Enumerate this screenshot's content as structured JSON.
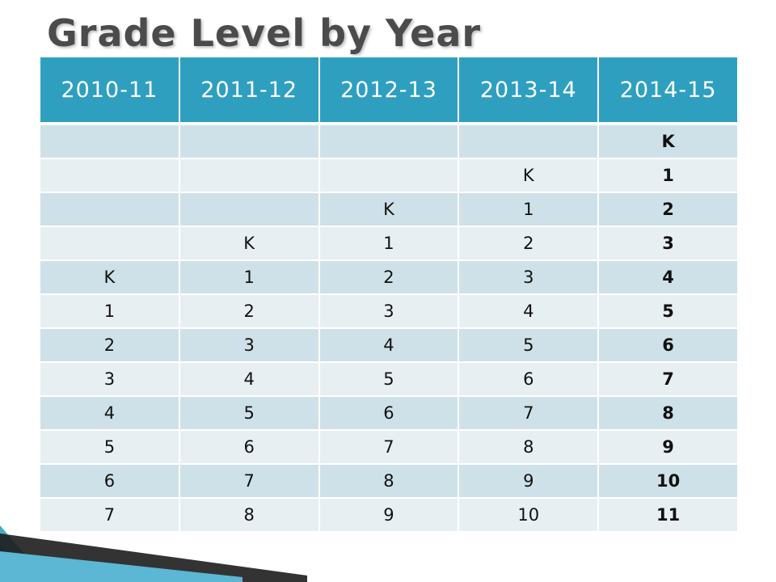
{
  "title": "Grade Level by Year",
  "table": {
    "headers": [
      "2010-11",
      "2011-12",
      "2012-13",
      "2013-14",
      "2014-15"
    ],
    "rows": [
      [
        "",
        "",
        "",
        "",
        "K"
      ],
      [
        "",
        "",
        "",
        "K",
        "1"
      ],
      [
        "",
        "",
        "K",
        "1",
        "2"
      ],
      [
        "",
        "K",
        "1",
        "2",
        "3"
      ],
      [
        "K",
        "1",
        "2",
        "3",
        "4"
      ],
      [
        "1",
        "2",
        "3",
        "4",
        "5"
      ],
      [
        "2",
        "3",
        "4",
        "5",
        "6"
      ],
      [
        "3",
        "4",
        "5",
        "6",
        "7"
      ],
      [
        "4",
        "5",
        "6",
        "7",
        "8"
      ],
      [
        "5",
        "6",
        "7",
        "8",
        "9"
      ],
      [
        "6",
        "7",
        "8",
        "9",
        "10"
      ],
      [
        "7",
        "8",
        "9",
        "10",
        "11"
      ]
    ]
  },
  "colors": {
    "header_bg": "#2f9fc0",
    "row_dark": "#cfe1e8",
    "row_light": "#e8eff3",
    "title": "#4b4b4b"
  }
}
